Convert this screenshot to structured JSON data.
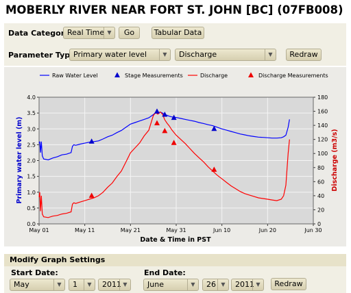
{
  "page_title": "MOBERLY RIVER NEAR FORT ST. JOHN [BC] (07FB008)",
  "controls": {
    "data_category_label": "Data Category:",
    "data_category_value": "Real Time",
    "go_label": "Go",
    "tabular_label": "Tabular Data",
    "parameter_type_label": "Parameter Type:",
    "parameter_primary": "Primary water level",
    "parameter_secondary": "Discharge",
    "redraw_label": "Redraw"
  },
  "chart_data": {
    "type": "line",
    "xlabel": "Date & Time in PST",
    "ylabel": "Primary water level (m)",
    "y2label": "Discharge (m3/s)",
    "x_ticks": [
      "May 01",
      "May 11",
      "May 21",
      "May 31",
      "Jun 10",
      "Jun 20",
      "Jun 30"
    ],
    "xlim": [
      0,
      60
    ],
    "ylim": [
      0,
      4.0
    ],
    "y_ticks": [
      "0.0",
      "0.5",
      "1.0",
      "1.5",
      "2.0",
      "2.5",
      "3.0",
      "3.5",
      "4.0"
    ],
    "y2lim": [
      0,
      180
    ],
    "y2_ticks": [
      "0",
      "20",
      "40",
      "60",
      "80",
      "100",
      "120",
      "140",
      "160",
      "180"
    ],
    "grid": true,
    "legend": [
      {
        "label": "Raw Water Level",
        "symbol": "line",
        "color": "#0000ff"
      },
      {
        "label": "Stage Measurements",
        "symbol": "triangle",
        "color": "#0000cc"
      },
      {
        "label": "Discharge",
        "symbol": "line",
        "color": "#ff0000"
      },
      {
        "label": "Discharge Measurements",
        "symbol": "triangle",
        "color": "#ee0000"
      }
    ],
    "series": [
      {
        "name": "Raw Water Level",
        "axis": "left",
        "color": "#0000ff",
        "x": [
          0,
          0.15,
          0.3,
          0.5,
          0.7,
          1.0,
          2,
          3,
          4,
          5,
          6,
          7,
          7.3,
          7.6,
          8,
          9,
          10,
          11,
          12,
          13,
          14,
          15,
          16,
          17,
          18,
          19,
          20,
          21,
          22,
          23,
          24,
          25,
          25.5,
          26,
          26.5,
          27,
          27.5,
          28,
          28.5,
          29,
          30,
          31,
          32,
          33,
          34,
          35,
          36,
          37,
          38,
          39,
          40,
          41,
          42,
          43,
          44,
          45,
          46,
          47,
          48,
          49,
          50,
          51,
          52,
          53,
          53.5,
          54,
          54.5,
          54.8
        ],
        "y": [
          2.55,
          2.6,
          2.25,
          2.6,
          2.15,
          2.05,
          2.02,
          2.08,
          2.12,
          2.18,
          2.2,
          2.25,
          2.45,
          2.5,
          2.48,
          2.52,
          2.55,
          2.58,
          2.6,
          2.62,
          2.68,
          2.75,
          2.8,
          2.88,
          2.95,
          3.05,
          3.15,
          3.2,
          3.25,
          3.3,
          3.35,
          3.45,
          3.52,
          3.5,
          3.53,
          3.5,
          3.45,
          3.43,
          3.4,
          3.38,
          3.36,
          3.33,
          3.3,
          3.27,
          3.24,
          3.2,
          3.17,
          3.13,
          3.1,
          3.05,
          3.0,
          2.96,
          2.92,
          2.88,
          2.84,
          2.81,
          2.78,
          2.76,
          2.74,
          2.73,
          2.72,
          2.71,
          2.71,
          2.72,
          2.75,
          2.8,
          3.05,
          3.3
        ]
      },
      {
        "name": "Discharge",
        "axis": "right",
        "color": "#ff0000",
        "x": [
          0,
          0.15,
          0.3,
          0.5,
          0.7,
          1.0,
          2,
          3,
          4,
          5,
          6,
          7,
          7.3,
          7.6,
          8,
          9,
          10,
          11,
          12,
          13,
          14,
          15,
          16,
          17,
          18,
          19,
          20,
          21,
          22,
          23,
          24,
          25,
          25.5,
          26,
          26.5,
          27,
          27.5,
          28,
          28.5,
          29,
          30,
          31,
          32,
          33,
          34,
          35,
          36,
          37,
          38,
          39,
          40,
          41,
          42,
          43,
          44,
          45,
          46,
          47,
          48,
          49,
          50,
          51,
          52,
          53,
          53.5,
          54,
          54.5,
          54.8
        ],
        "y": [
          38,
          45,
          18,
          40,
          14,
          10,
          9,
          11,
          12,
          14,
          15,
          17,
          28,
          30,
          29,
          31,
          33,
          35,
          37,
          40,
          45,
          52,
          58,
          67,
          75,
          88,
          101,
          108,
          115,
          125,
          133,
          154,
          158,
          156,
          159,
          156,
          148,
          143,
          139,
          134,
          126,
          120,
          114,
          107,
          100,
          94,
          88,
          81,
          75,
          69,
          64,
          59,
          54,
          50,
          46,
          43,
          41,
          39,
          37,
          36,
          35,
          34,
          33,
          35,
          40,
          55,
          100,
          120
        ]
      }
    ],
    "stage_measurements": [
      {
        "x": 11.5,
        "y": 2.6
      },
      {
        "x": 25.8,
        "y": 3.55
      },
      {
        "x": 27.5,
        "y": 3.45
      },
      {
        "x": 29.5,
        "y": 3.35
      },
      {
        "x": 38.3,
        "y": 3.0
      }
    ],
    "discharge_measurements": [
      {
        "x": 11.5,
        "y": 40
      },
      {
        "x": 25.8,
        "y": 143
      },
      {
        "x": 27.5,
        "y": 132
      },
      {
        "x": 29.5,
        "y": 115
      },
      {
        "x": 38.3,
        "y": 77
      }
    ]
  },
  "modify": {
    "title": "Modify Graph Settings",
    "start_label": "Start Date:",
    "start_month": "May",
    "start_day": "1",
    "start_year": "2011",
    "end_label": "End Date:",
    "end_month": "June",
    "end_day": "26",
    "end_year": "2011",
    "redraw_label": "Redraw"
  }
}
